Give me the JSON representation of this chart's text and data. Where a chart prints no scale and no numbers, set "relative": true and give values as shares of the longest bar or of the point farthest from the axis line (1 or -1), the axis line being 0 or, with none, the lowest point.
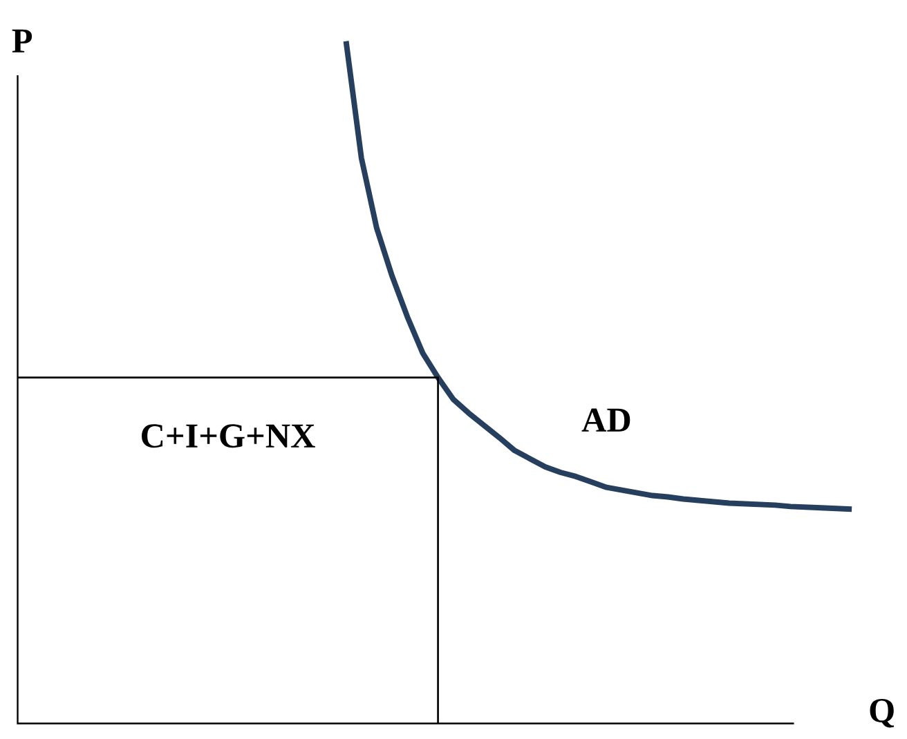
{
  "chart_data": {
    "type": "line",
    "relative": true,
    "xlabel": "Q",
    "categories": [
      null,
      null,
      null,
      null,
      null,
      null,
      null,
      null,
      null,
      null,
      null,
      null,
      null,
      null,
      null,
      null,
      null,
      null,
      null,
      null,
      null,
      null,
      null,
      null,
      null,
      null,
      null,
      null,
      null,
      null,
      null,
      null,
      null,
      null
    ],
    "series": [
      {
        "name": "AD",
        "color": "#263f5e",
        "values": [
          1.0,
          0.829,
          0.726,
          0.656,
          0.596,
          0.543,
          0.507,
          0.475,
          0.455,
          0.437,
          0.419,
          0.4,
          0.388,
          0.376,
          0.368,
          0.362,
          0.354,
          0.346,
          0.342,
          0.338,
          0.334,
          0.332,
          0.329,
          0.327,
          0.325,
          0.323,
          0.322,
          0.321,
          0.32,
          0.318,
          0.317,
          0.316,
          0.315,
          0.314
        ]
      }
    ],
    "ref_lines": [
      {
        "axis": "y",
        "value": 0.507,
        "color": "#000000"
      }
    ],
    "annotations": [
      "C+I+G+NX",
      "P"
    ]
  }
}
